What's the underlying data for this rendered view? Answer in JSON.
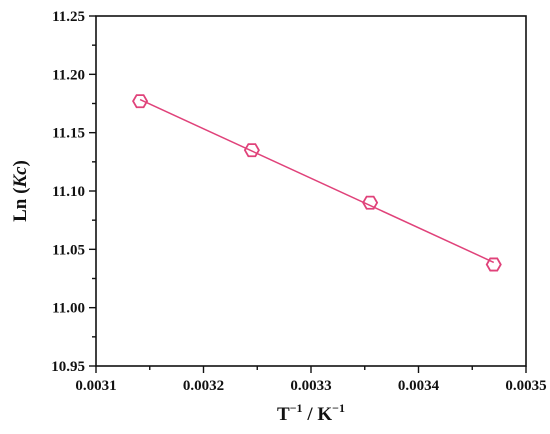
{
  "chart_data": {
    "type": "scatter",
    "title": "",
    "xlabel": "T",
    "xlabel_sup": "−1",
    "xlabel_mid": " / K",
    "xlabel_sup2": "−1",
    "ylabel_prefix": "Ln (",
    "ylabel_italic": "Kc",
    "ylabel_suffix": ")",
    "xlim": [
      0.0031,
      0.0035
    ],
    "ylim": [
      10.95,
      11.25
    ],
    "xticks": [
      "0.0031",
      "0.0032",
      "0.0033",
      "0.0034",
      "0.0035"
    ],
    "yticks": [
      "10.95",
      "11.00",
      "11.05",
      "11.10",
      "11.15",
      "11.20",
      "11.25"
    ],
    "grid": false,
    "series": [
      {
        "x": [
          0.003141,
          0.003245,
          0.003355,
          0.00347
        ],
        "y": [
          11.177,
          11.135,
          11.09,
          11.037
        ],
        "marker": "hexagon-open",
        "color": "#e0427a",
        "fit_line": true
      }
    ]
  }
}
